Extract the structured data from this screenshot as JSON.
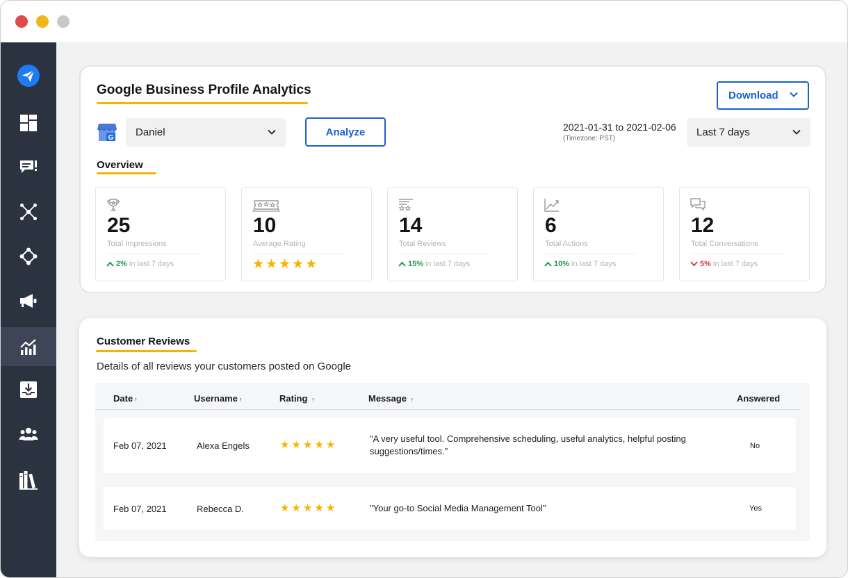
{
  "window": {
    "controls": [
      "close",
      "minimize",
      "zoom"
    ]
  },
  "sidebar": {
    "items": [
      {
        "name": "logo-icon",
        "active": false
      },
      {
        "name": "dashboard-icon",
        "active": false
      },
      {
        "name": "inbox-icon",
        "active": false
      },
      {
        "name": "network-icon",
        "active": false
      },
      {
        "name": "connections-icon",
        "active": false
      },
      {
        "name": "megaphone-icon",
        "active": false
      },
      {
        "name": "analytics-icon",
        "active": true
      },
      {
        "name": "download-tray-icon",
        "active": false
      },
      {
        "name": "team-icon",
        "active": false
      },
      {
        "name": "library-icon",
        "active": false
      }
    ]
  },
  "header": {
    "title": "Google Business Profile Analytics",
    "download_label": "Download",
    "profile_value": "Daniel",
    "analyze_label": "Analyze",
    "date_range": "2021-01-31 to 2021-02-06",
    "timezone": "(Timezone: PST)",
    "range_value": "Last 7 days"
  },
  "overview": {
    "label": "Overview",
    "stats": [
      {
        "icon": "trophy-icon",
        "value": "25",
        "label": "Total Impressions",
        "pct": "2%",
        "direction": "up",
        "rest": "in last 7 days"
      },
      {
        "icon": "rating-badge-icon",
        "value": "10",
        "label": "Average Rating",
        "stars": 5
      },
      {
        "icon": "reviews-list-icon",
        "value": "14",
        "label": "Total Reviews",
        "pct": "15%",
        "direction": "up",
        "rest": "in last 7 days"
      },
      {
        "icon": "line-chart-icon",
        "value": "6",
        "label": "Total Actions",
        "pct": "10%",
        "direction": "up",
        "rest": "in last 7 days"
      },
      {
        "icon": "chat-bubbles-icon",
        "value": "12",
        "label": "Total Conversations",
        "pct": "5%",
        "direction": "down",
        "rest": "in last 7 days"
      }
    ]
  },
  "reviews": {
    "title": "Customer Reviews",
    "subtitle": "Details of all reviews your customers posted on Google",
    "columns": {
      "date": "Date",
      "username": "Username",
      "rating": "Rating",
      "message": "Message",
      "answered": "Answered"
    },
    "rows": [
      {
        "date": "Feb 07, 2021",
        "username": "Alexa Engels",
        "rating": 5,
        "message_line1": "\"A very useful tool. Comprehensive scheduling, useful analytics, helpful posting",
        "message_line2": "suggestions/times.\"",
        "answered": "No"
      },
      {
        "date": "Feb 07, 2021",
        "username": "Rebecca D.",
        "rating": 5,
        "message_line1": "\"Your go-to Social Media Management Tool\"",
        "message_line2": "",
        "answered": "Yes"
      }
    ]
  },
  "colors": {
    "sidebar": "#2b3240",
    "sidebar_active": "#3d4556",
    "accent_blue": "#1b5fd6",
    "underline_yellow": "#f6b400",
    "trend_up": "#1f9d4e",
    "trend_down": "#d93b3b"
  }
}
